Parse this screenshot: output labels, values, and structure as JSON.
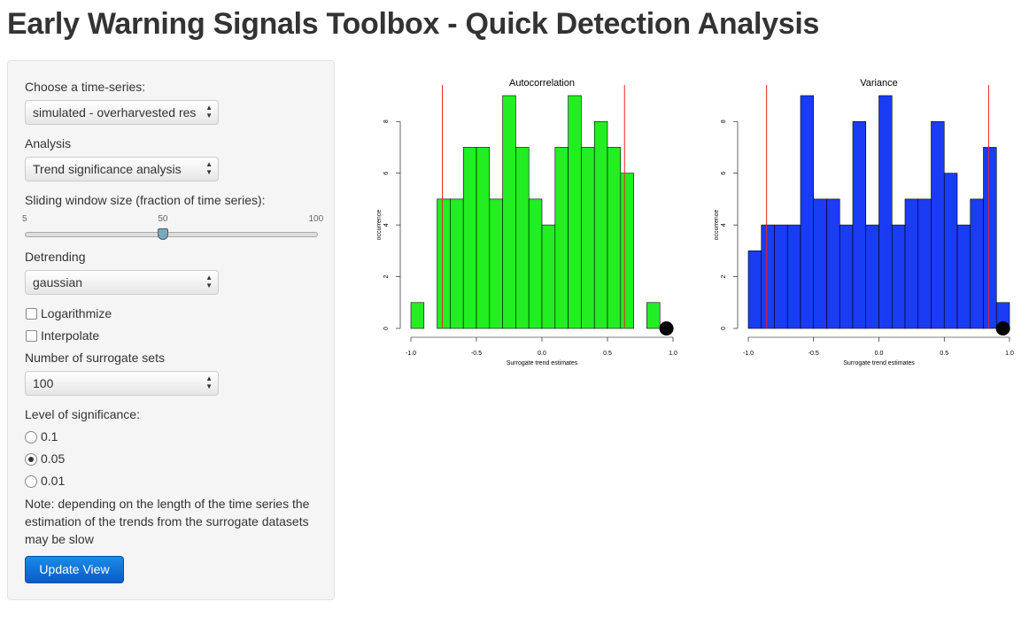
{
  "header": {
    "title": "Early Warning Signals Toolbox - Quick Detection Analysis"
  },
  "sidebar": {
    "timeseries": {
      "label": "Choose a time-series:",
      "value": "simulated - overharvested resource"
    },
    "analysis": {
      "label": "Analysis",
      "value": "Trend significance analysis"
    },
    "window": {
      "label": "Sliding window size (fraction of time series):",
      "min": 5,
      "value": 50,
      "max": 100
    },
    "detrending": {
      "label": "Detrending",
      "value": "gaussian"
    },
    "checkboxes": [
      {
        "label": "Logarithmize",
        "checked": false
      },
      {
        "label": "Interpolate",
        "checked": false
      }
    ],
    "surrogates": {
      "label": "Number of surrogate sets",
      "value": "100"
    },
    "significance": {
      "label": "Level of significance:",
      "options": [
        "0.1",
        "0.05",
        "0.01"
      ],
      "selected": 1
    },
    "note": "Note: depending on the length of the time series the estimation of the trends from the surrogate datasets may be slow",
    "button": "Update View"
  },
  "chart_data": [
    {
      "type": "histogram",
      "title": "Autocorrelation",
      "x_label": "Surrogate trend estimates",
      "y_label": "occurrence",
      "color": "#22ee22",
      "bins": [
        -1.0,
        -0.9,
        -0.8,
        -0.7,
        -0.6,
        -0.5,
        -0.4,
        -0.3,
        -0.2,
        -0.1,
        0.0,
        0.1,
        0.2,
        0.3,
        0.4,
        0.5,
        0.6,
        0.7,
        0.8,
        0.9
      ],
      "values": [
        1,
        0,
        5,
        5,
        7,
        7,
        5,
        9,
        7,
        5,
        4,
        7,
        9,
        7,
        8,
        7,
        6,
        0,
        1
      ],
      "xlim": [
        -1,
        1
      ],
      "xticks": [
        {
          "value": -1,
          "label": "-1.0"
        },
        {
          "value": -0.5,
          "label": "-0.5"
        },
        {
          "value": 0,
          "label": "0.0"
        },
        {
          "value": 0.5,
          "label": "0.5"
        },
        {
          "value": 1,
          "label": "1.0"
        }
      ],
      "ylim": [
        0,
        9
      ],
      "yticks": [
        0,
        2,
        4,
        6,
        8
      ],
      "vlines": [
        -0.76,
        0.63
      ],
      "vline_color": "#ee2222",
      "observed": {
        "x": 0.95,
        "y": 0
      }
    },
    {
      "type": "histogram",
      "title": "Variance",
      "x_label": "Surrogate trend estimates",
      "y_label": "occurrence",
      "color": "#1a3cf5",
      "bins": [
        -1.0,
        -0.9,
        -0.8,
        -0.7,
        -0.6,
        -0.5,
        -0.4,
        -0.3,
        -0.2,
        -0.1,
        0.0,
        0.1,
        0.2,
        0.3,
        0.4,
        0.5,
        0.6,
        0.7,
        0.8,
        0.9,
        1.0
      ],
      "values": [
        3,
        4,
        4,
        4,
        9,
        5,
        5,
        4,
        8,
        4,
        9,
        4,
        5,
        5,
        8,
        6,
        4,
        5,
        7,
        1
      ],
      "xlim": [
        -1,
        1
      ],
      "xticks": [
        {
          "value": -1,
          "label": "-1.0"
        },
        {
          "value": -0.5,
          "label": "-0.5"
        },
        {
          "value": 0,
          "label": "0.0"
        },
        {
          "value": 0.5,
          "label": "0.5"
        },
        {
          "value": 1,
          "label": "1.0"
        }
      ],
      "ylim": [
        0,
        9
      ],
      "yticks": [
        0,
        2,
        4,
        6,
        8
      ],
      "vlines": [
        -0.86,
        0.84
      ],
      "vline_color": "#ee2222",
      "observed": {
        "x": 0.95,
        "y": 0
      }
    }
  ]
}
